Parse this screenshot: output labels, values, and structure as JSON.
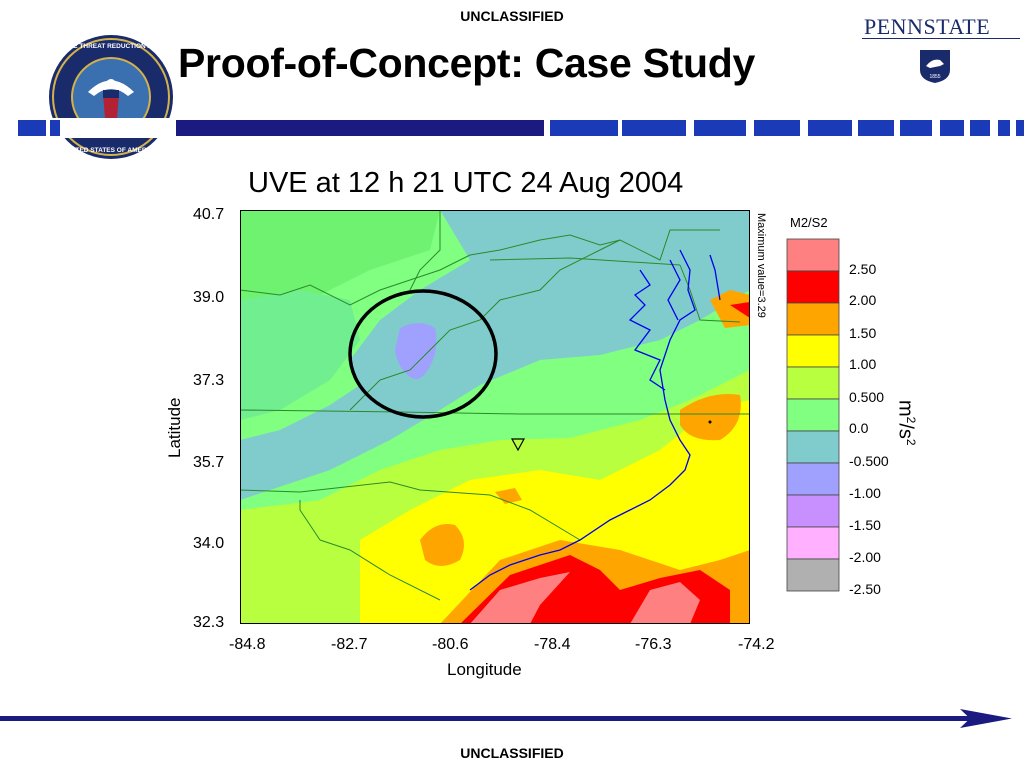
{
  "classification": {
    "top": "UNCLASSIFIED",
    "bottom": "UNCLASSIFIED"
  },
  "slide": {
    "title": "Proof-of-Concept: Case Study"
  },
  "logos": {
    "seal_text": "DEFENSE THREAT REDUCTION AGENCY · UNITED STATES OF AMERICA",
    "university": "PENNSTATE",
    "university_year": "1855"
  },
  "map": {
    "title": "UVE at 12 h 21 UTC 24 Aug 2004",
    "xlabel": "Longitude",
    "ylabel": "Latitude",
    "x_ticks": [
      "-84.8",
      "-82.7",
      "-80.6",
      "-78.4",
      "-76.3",
      "-74.2"
    ],
    "y_ticks": [
      "40.7",
      "39.0",
      "37.3",
      "35.7",
      "34.0",
      "32.3"
    ],
    "max_value_note": "Maximum value=3.29",
    "legend_title": "M2/S2",
    "legend_labels": [
      "2.50",
      "2.00",
      "1.50",
      "1.00",
      "0.500",
      "0.0",
      "-0.500",
      "-1.00",
      "-1.50",
      "-2.00",
      "-2.50"
    ],
    "legend_colors": [
      "#ff8080",
      "#ff0000",
      "#ffa500",
      "#ffff00",
      "#b8ff40",
      "#80ff80",
      "#80cccc",
      "#a0a0ff",
      "#c890ff",
      "#ffb0ff",
      "#b0b0b0"
    ],
    "unit": "m",
    "unit_mid": "/s"
  },
  "theme": {
    "navy": "#1a1a80",
    "psu_blue": "#1a2b6b"
  }
}
